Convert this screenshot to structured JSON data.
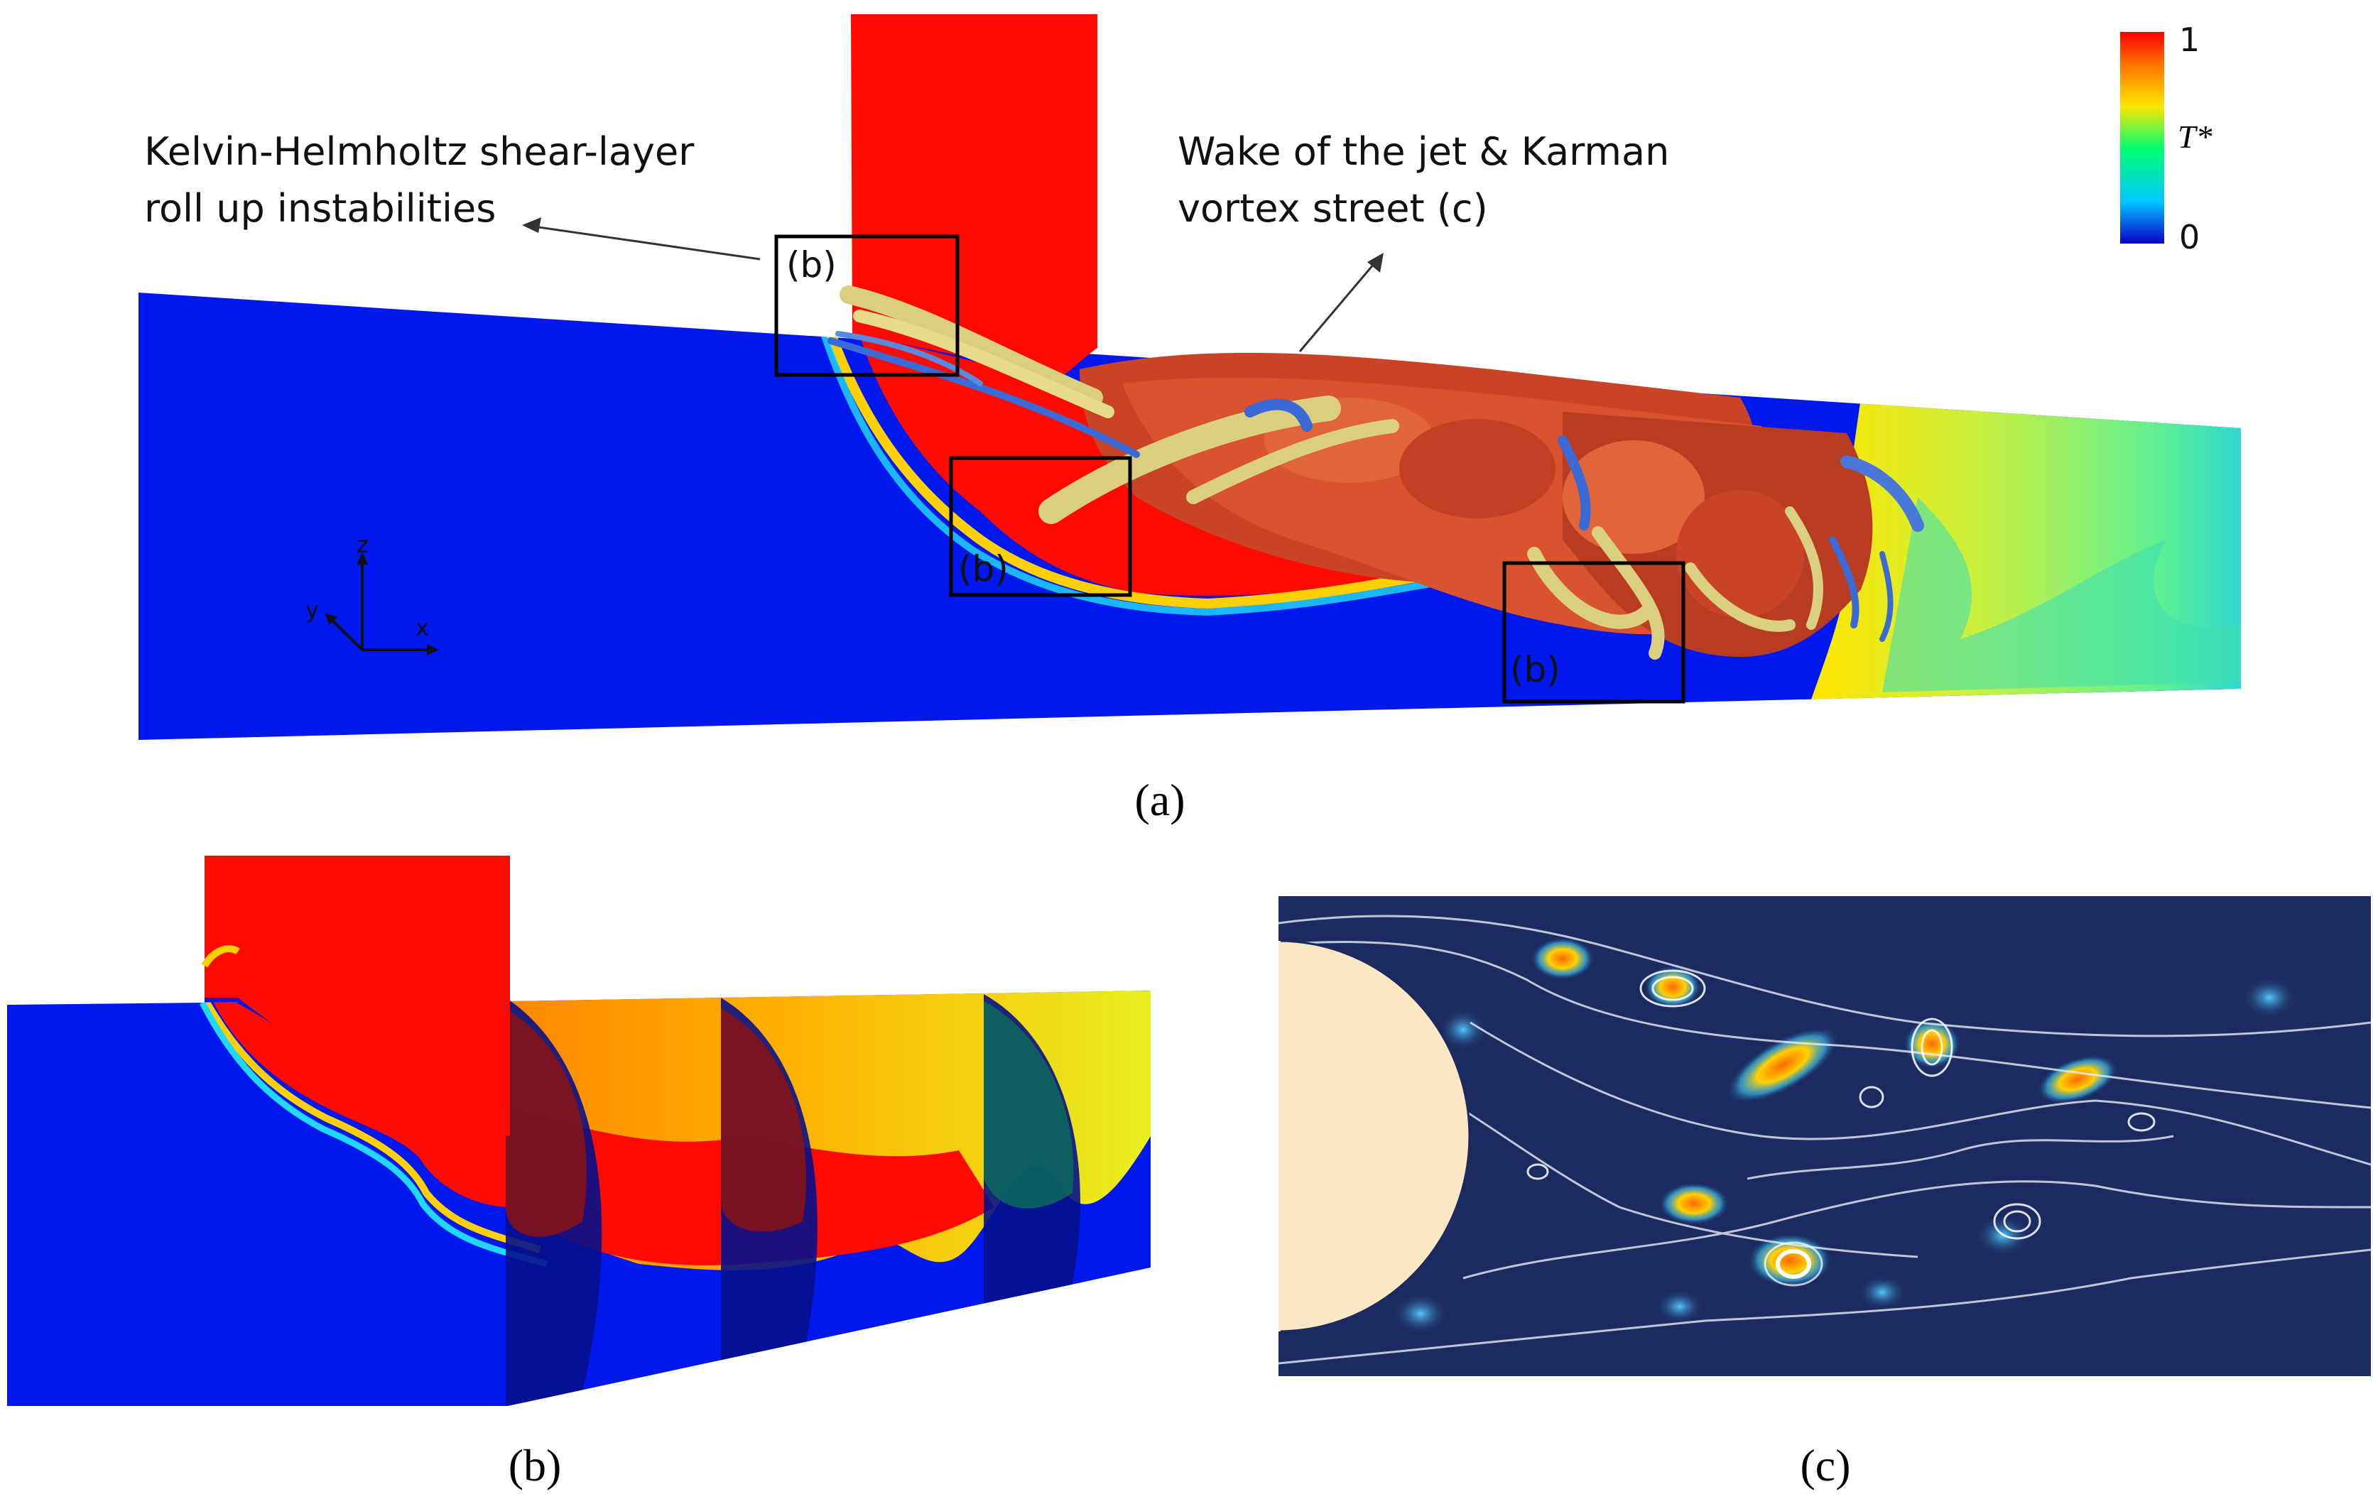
{
  "panel_a": {
    "label": "(a)",
    "annotation_kh_line1": "Kelvin-Helmholtz shear-layer",
    "annotation_kh_line2": "roll up instabilities",
    "annotation_wake_line1": "Wake of the jet & Karman",
    "annotation_wake_line2": "vortex street (c)",
    "box_labels": [
      "(b)",
      "(b)",
      "(b)"
    ],
    "axes": {
      "z": "z",
      "y": "y",
      "x": "x"
    },
    "colorbar": {
      "max_label": "1",
      "min_label": "0",
      "variable_label": "T*",
      "colors": [
        "#0b00c8",
        "#00c8ff",
        "#00ff70",
        "#ffe600",
        "#ff7000",
        "#ff0000"
      ]
    }
  },
  "panel_b": {
    "label": "(b)"
  },
  "panel_c": {
    "label": "(c)"
  },
  "colors": {
    "cold": "#0018ee",
    "hot": "#ff0a00",
    "iso_surface": "#d9532f",
    "iso_light": "#d9cf7f",
    "wake_bg": "#1b2a5f",
    "cylinder": "#fbe7c4"
  }
}
